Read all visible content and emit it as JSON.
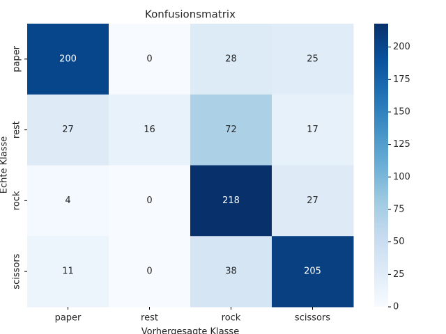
{
  "chart_data": {
    "type": "heatmap",
    "title": "Konfusionsmatrix",
    "x_label": "Vorhergesagte Klasse",
    "y_label": "Echte Klasse",
    "x_categories": [
      "paper",
      "rest",
      "rock",
      "scissors"
    ],
    "y_categories": [
      "paper",
      "rest",
      "rock",
      "scissors"
    ],
    "values": [
      [
        200,
        0,
        28,
        25
      ],
      [
        27,
        16,
        72,
        17
      ],
      [
        4,
        0,
        218,
        27
      ],
      [
        11,
        0,
        38,
        205
      ]
    ],
    "colormap": "Blues",
    "zlim": [
      0,
      218
    ],
    "zticks": [
      0,
      25,
      50,
      75,
      100,
      125,
      150,
      175,
      200
    ]
  }
}
